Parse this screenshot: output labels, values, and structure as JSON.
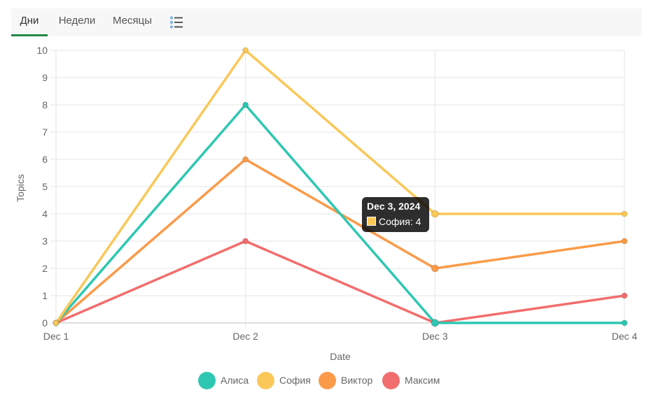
{
  "tabs": [
    {
      "label": "Дни",
      "active": true
    },
    {
      "label": "Недели",
      "active": false
    },
    {
      "label": "Месяцы",
      "active": false
    }
  ],
  "view_toggle_icon": "list-icon",
  "chart_data": {
    "type": "line",
    "categories": [
      "Dec 1",
      "Dec 2",
      "Dec 3",
      "Dec 4"
    ],
    "xlabel": "Date",
    "ylabel": "Topics",
    "ylim": [
      0,
      10
    ],
    "yticks": [
      "0",
      "1",
      "2",
      "3",
      "4",
      "5",
      "6",
      "7",
      "8",
      "9",
      "10"
    ],
    "grid": true,
    "legend_position": "bottom",
    "series": [
      {
        "name": "Алиса",
        "color": "#2ec7b2",
        "values": [
          0,
          8,
          0,
          0
        ]
      },
      {
        "name": "София",
        "color": "#fac858",
        "values": [
          0,
          10,
          4,
          4
        ]
      },
      {
        "name": "Виктор",
        "color": "#fb9a48",
        "values": [
          0,
          6,
          2,
          3
        ]
      },
      {
        "name": "Максим",
        "color": "#f26d6d",
        "values": [
          0,
          3,
          0,
          1
        ]
      }
    ],
    "tooltip": {
      "title": "Dec 3, 2024",
      "label": "София: 4",
      "series_index": 1,
      "category_index": 2
    }
  }
}
